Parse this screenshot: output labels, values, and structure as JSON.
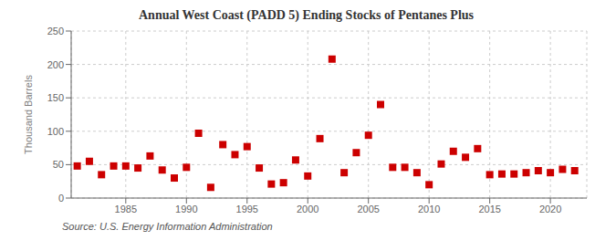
{
  "chart_data": {
    "type": "scatter",
    "title": "Annual West Coast (PADD 5) Ending Stocks of Pentanes Plus",
    "y_label": "Thousand Barrels",
    "source": "Source: U.S. Energy Information Administration",
    "x": [
      1981,
      1982,
      1983,
      1984,
      1985,
      1986,
      1987,
      1988,
      1989,
      1990,
      1991,
      1992,
      1993,
      1994,
      1995,
      1996,
      1997,
      1998,
      1999,
      2000,
      2001,
      2002,
      2003,
      2004,
      2005,
      2006,
      2007,
      2008,
      2009,
      2010,
      2011,
      2012,
      2013,
      2014,
      2015,
      2016,
      2017,
      2018,
      2019,
      2020,
      2021,
      2022
    ],
    "values": [
      48,
      55,
      35,
      48,
      48,
      45,
      63,
      42,
      30,
      46,
      97,
      16,
      80,
      65,
      77,
      45,
      21,
      23,
      57,
      33,
      89,
      208,
      38,
      68,
      94,
      140,
      46,
      46,
      38,
      20,
      51,
      70,
      61,
      74,
      35,
      36,
      36,
      38,
      41,
      38,
      43,
      41
    ],
    "color": "#cc0000",
    "marker": "square",
    "xlim": [
      1980.5,
      2023
    ],
    "xticks": [
      1985,
      1990,
      1995,
      2000,
      2005,
      2010,
      2015,
      2020
    ],
    "ylim": [
      0,
      250
    ],
    "yticks": [
      0,
      50,
      100,
      150,
      200,
      250
    ],
    "grid": true
  }
}
